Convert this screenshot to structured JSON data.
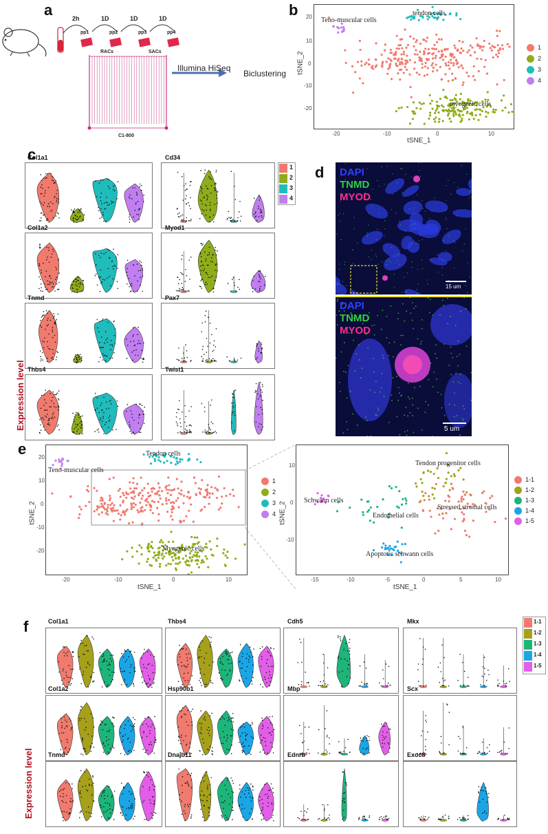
{
  "panels": {
    "a": {
      "letter": "a",
      "steps": [
        "2h",
        "1D",
        "1D",
        "1D"
      ],
      "passages": [
        "pp1",
        "pp2",
        "pp3",
        "pp4"
      ],
      "rac_label": "RACs",
      "sac_label": "SACs",
      "instrument": "Illumina HiSeq",
      "method": "Biclustering",
      "chip": "C1-800"
    },
    "b": {
      "letter": "b",
      "annotations": [
        "Teno-muscular cells",
        "tendon cells",
        "myogenic cells"
      ],
      "legend": [
        "1",
        "2",
        "3",
        "4"
      ]
    },
    "c": {
      "letter": "c",
      "genes_left": [
        "Col1a1",
        "Col1a2",
        "Tnmd",
        "Thbs4"
      ],
      "genes_right": [
        "Cd34",
        "Myod1",
        "Pax7",
        "Twist1"
      ],
      "legend": [
        "1",
        "2",
        "3",
        "4"
      ],
      "ylabel": "Expression level"
    },
    "d": {
      "letter": "d",
      "stains": [
        "DAPI",
        "TNMD",
        "MYOD"
      ],
      "scale_top": "15 um",
      "scale_bottom": "5 um"
    },
    "e": {
      "letter": "e",
      "left_annotations": [
        "Tendon cells",
        "Teno-muscular cells",
        "Myogenic cells"
      ],
      "right_annotations": [
        "Tendon progenitor cells",
        "Schwann cells",
        "Endothelial cells",
        "Stressed stromal cells",
        "Apoptotic schwann cells"
      ],
      "legend_left": [
        "1",
        "2",
        "3",
        "4"
      ],
      "legend_right": [
        "1-1",
        "1-2",
        "1-3",
        "1-4",
        "1-5"
      ]
    },
    "f": {
      "letter": "f",
      "genes_col1": [
        "Col1a1",
        "Col1a2",
        "Tnmd"
      ],
      "genes_col2": [
        "Thbs4",
        "Hsp90b1",
        "Dnajb11"
      ],
      "genes_col3": [
        "Cdh5",
        "Mbp",
        "Ednrb"
      ],
      "genes_col4": [
        "Mkx",
        "Scx",
        "Exoc8"
      ],
      "legend": [
        "1-1",
        "1-2",
        "1-3",
        "1-4",
        "1-5"
      ],
      "ylabel": "Expression level"
    }
  },
  "axes": {
    "tsne1": "tSNE_1",
    "tsne2": "tSNE_2",
    "b_xticks": [
      "-20",
      "-10",
      "0",
      "10"
    ],
    "b_yticks": [
      "20",
      "10",
      "0",
      "-10",
      "-20"
    ],
    "e_left_xticks": [
      "-20",
      "-10",
      "0",
      "10"
    ],
    "e_left_yticks": [
      "20",
      "10",
      "0",
      "-10",
      "-20"
    ],
    "e_right_xticks": [
      "-15",
      "-10",
      "-5",
      "0",
      "5",
      "10"
    ],
    "e_right_yticks": [
      "10",
      "0",
      "-10"
    ]
  },
  "colors": {
    "c1": "#f07a6e",
    "c2": "#8fad1a",
    "c3": "#1fbcbc",
    "c4": "#c07ef0",
    "f1": "#f07a6e",
    "f2": "#a6a01a",
    "f3": "#1db57a",
    "f4": "#1aa6e6",
    "f5": "#e35ee8"
  }
}
